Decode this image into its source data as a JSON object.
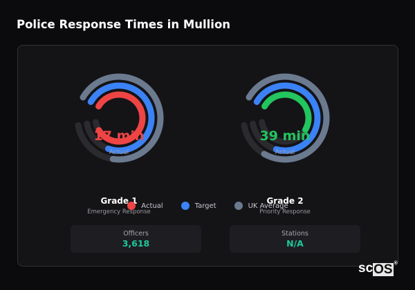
{
  "title": "Police Response Times in Mullion",
  "colors": {
    "target": "#3b82f6",
    "uk_average": "#6b7a8f",
    "track": "#2a2a2f",
    "stat_value": "#1ec99b"
  },
  "gauges": [
    {
      "name": "Grade 1",
      "subtitle": "Emergency Response",
      "value_text": "17 min",
      "value_label": "Actual",
      "actual_color": "#ef4444",
      "fills_percent": {
        "actual": 83,
        "target": 72,
        "uk_average": 69
      }
    },
    {
      "name": "Grade 2",
      "subtitle": "Priority Response",
      "value_text": "39 min",
      "value_label": "Actual",
      "actual_color": "#22c55e",
      "fills_percent": {
        "actual": 50,
        "target": 71,
        "uk_average": 75
      }
    }
  ],
  "legend": [
    {
      "label": "Actual",
      "color": "#ef4444"
    },
    {
      "label": "Target",
      "color": "#3b82f6"
    },
    {
      "label": "UK Average",
      "color": "#6b7a8f"
    }
  ],
  "stats": [
    {
      "label": "Officers",
      "value": "3,618"
    },
    {
      "label": "Stations",
      "value": "N/A"
    }
  ],
  "logo": {
    "text_a": "sc",
    "text_b": "OS",
    "mark": "®"
  }
}
